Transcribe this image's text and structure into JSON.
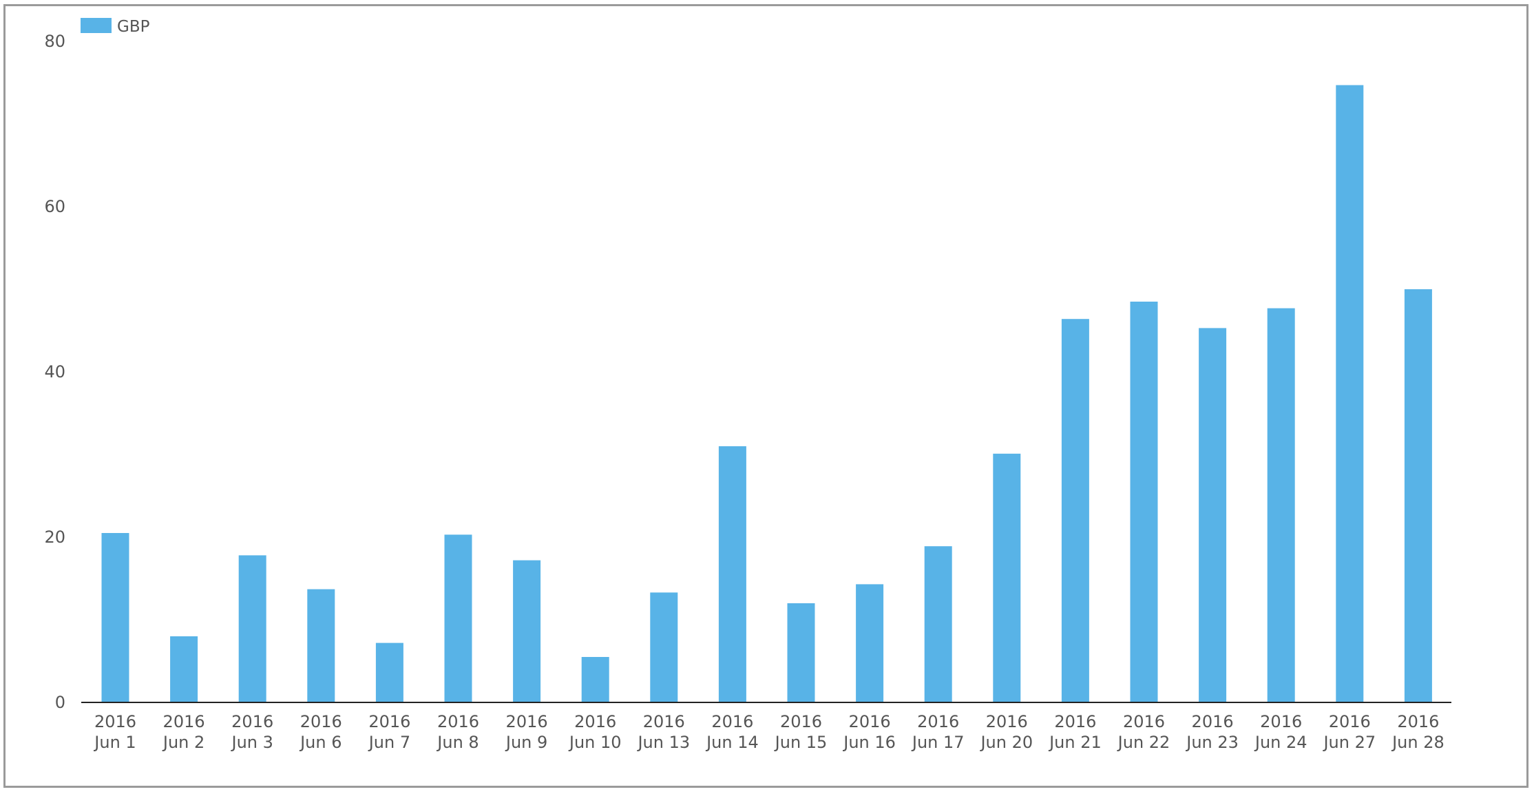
{
  "chart_data": {
    "type": "bar",
    "legend": {
      "position": "top-left",
      "entries": [
        "GBP"
      ]
    },
    "categories": [
      [
        "2016",
        "Jun 1"
      ],
      [
        "2016",
        "Jun 2"
      ],
      [
        "2016",
        "Jun 3"
      ],
      [
        "2016",
        "Jun 6"
      ],
      [
        "2016",
        "Jun 7"
      ],
      [
        "2016",
        "Jun 8"
      ],
      [
        "2016",
        "Jun 9"
      ],
      [
        "2016",
        "Jun 10"
      ],
      [
        "2016",
        "Jun 13"
      ],
      [
        "2016",
        "Jun 14"
      ],
      [
        "2016",
        "Jun 15"
      ],
      [
        "2016",
        "Jun 16"
      ],
      [
        "2016",
        "Jun 17"
      ],
      [
        "2016",
        "Jun 20"
      ],
      [
        "2016",
        "Jun 21"
      ],
      [
        "2016",
        "Jun 22"
      ],
      [
        "2016",
        "Jun 23"
      ],
      [
        "2016",
        "Jun 24"
      ],
      [
        "2016",
        "Jun 27"
      ],
      [
        "2016",
        "Jun 28"
      ]
    ],
    "series": [
      {
        "name": "GBP",
        "color": "#58b3e7",
        "values": [
          20.5,
          8.0,
          17.8,
          13.7,
          7.2,
          20.3,
          17.2,
          5.5,
          13.3,
          31.0,
          12.0,
          14.3,
          18.9,
          30.1,
          46.4,
          48.5,
          45.3,
          47.7,
          74.7,
          50.0
        ]
      }
    ],
    "ylim": [
      0,
      80
    ],
    "yticks": [
      0,
      20,
      40,
      60,
      80
    ],
    "grid": false,
    "xlabel": "",
    "ylabel": ""
  }
}
